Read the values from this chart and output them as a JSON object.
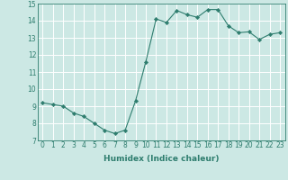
{
  "x": [
    0,
    1,
    2,
    3,
    4,
    5,
    6,
    7,
    8,
    9,
    10,
    11,
    12,
    13,
    14,
    15,
    16,
    17,
    18,
    19,
    20,
    21,
    22,
    23
  ],
  "y": [
    9.2,
    9.1,
    9.0,
    8.6,
    8.4,
    8.0,
    7.6,
    7.4,
    7.6,
    9.3,
    11.6,
    14.1,
    13.9,
    14.6,
    14.35,
    14.2,
    14.65,
    14.65,
    13.7,
    13.3,
    13.35,
    12.9,
    13.2,
    13.3
  ],
  "xlabel": "Humidex (Indice chaleur)",
  "ylabel": "",
  "ylim": [
    7,
    15
  ],
  "xlim": [
    -0.5,
    23.5
  ],
  "yticks": [
    7,
    8,
    9,
    10,
    11,
    12,
    13,
    14,
    15
  ],
  "xticks": [
    0,
    1,
    2,
    3,
    4,
    5,
    6,
    7,
    8,
    9,
    10,
    11,
    12,
    13,
    14,
    15,
    16,
    17,
    18,
    19,
    20,
    21,
    22,
    23
  ],
  "line_color": "#2e7d6e",
  "marker": "D",
  "marker_size": 2.2,
  "bg_color": "#cce8e4",
  "grid_color": "#ffffff",
  "label_fontsize": 6.5,
  "tick_fontsize": 5.5
}
